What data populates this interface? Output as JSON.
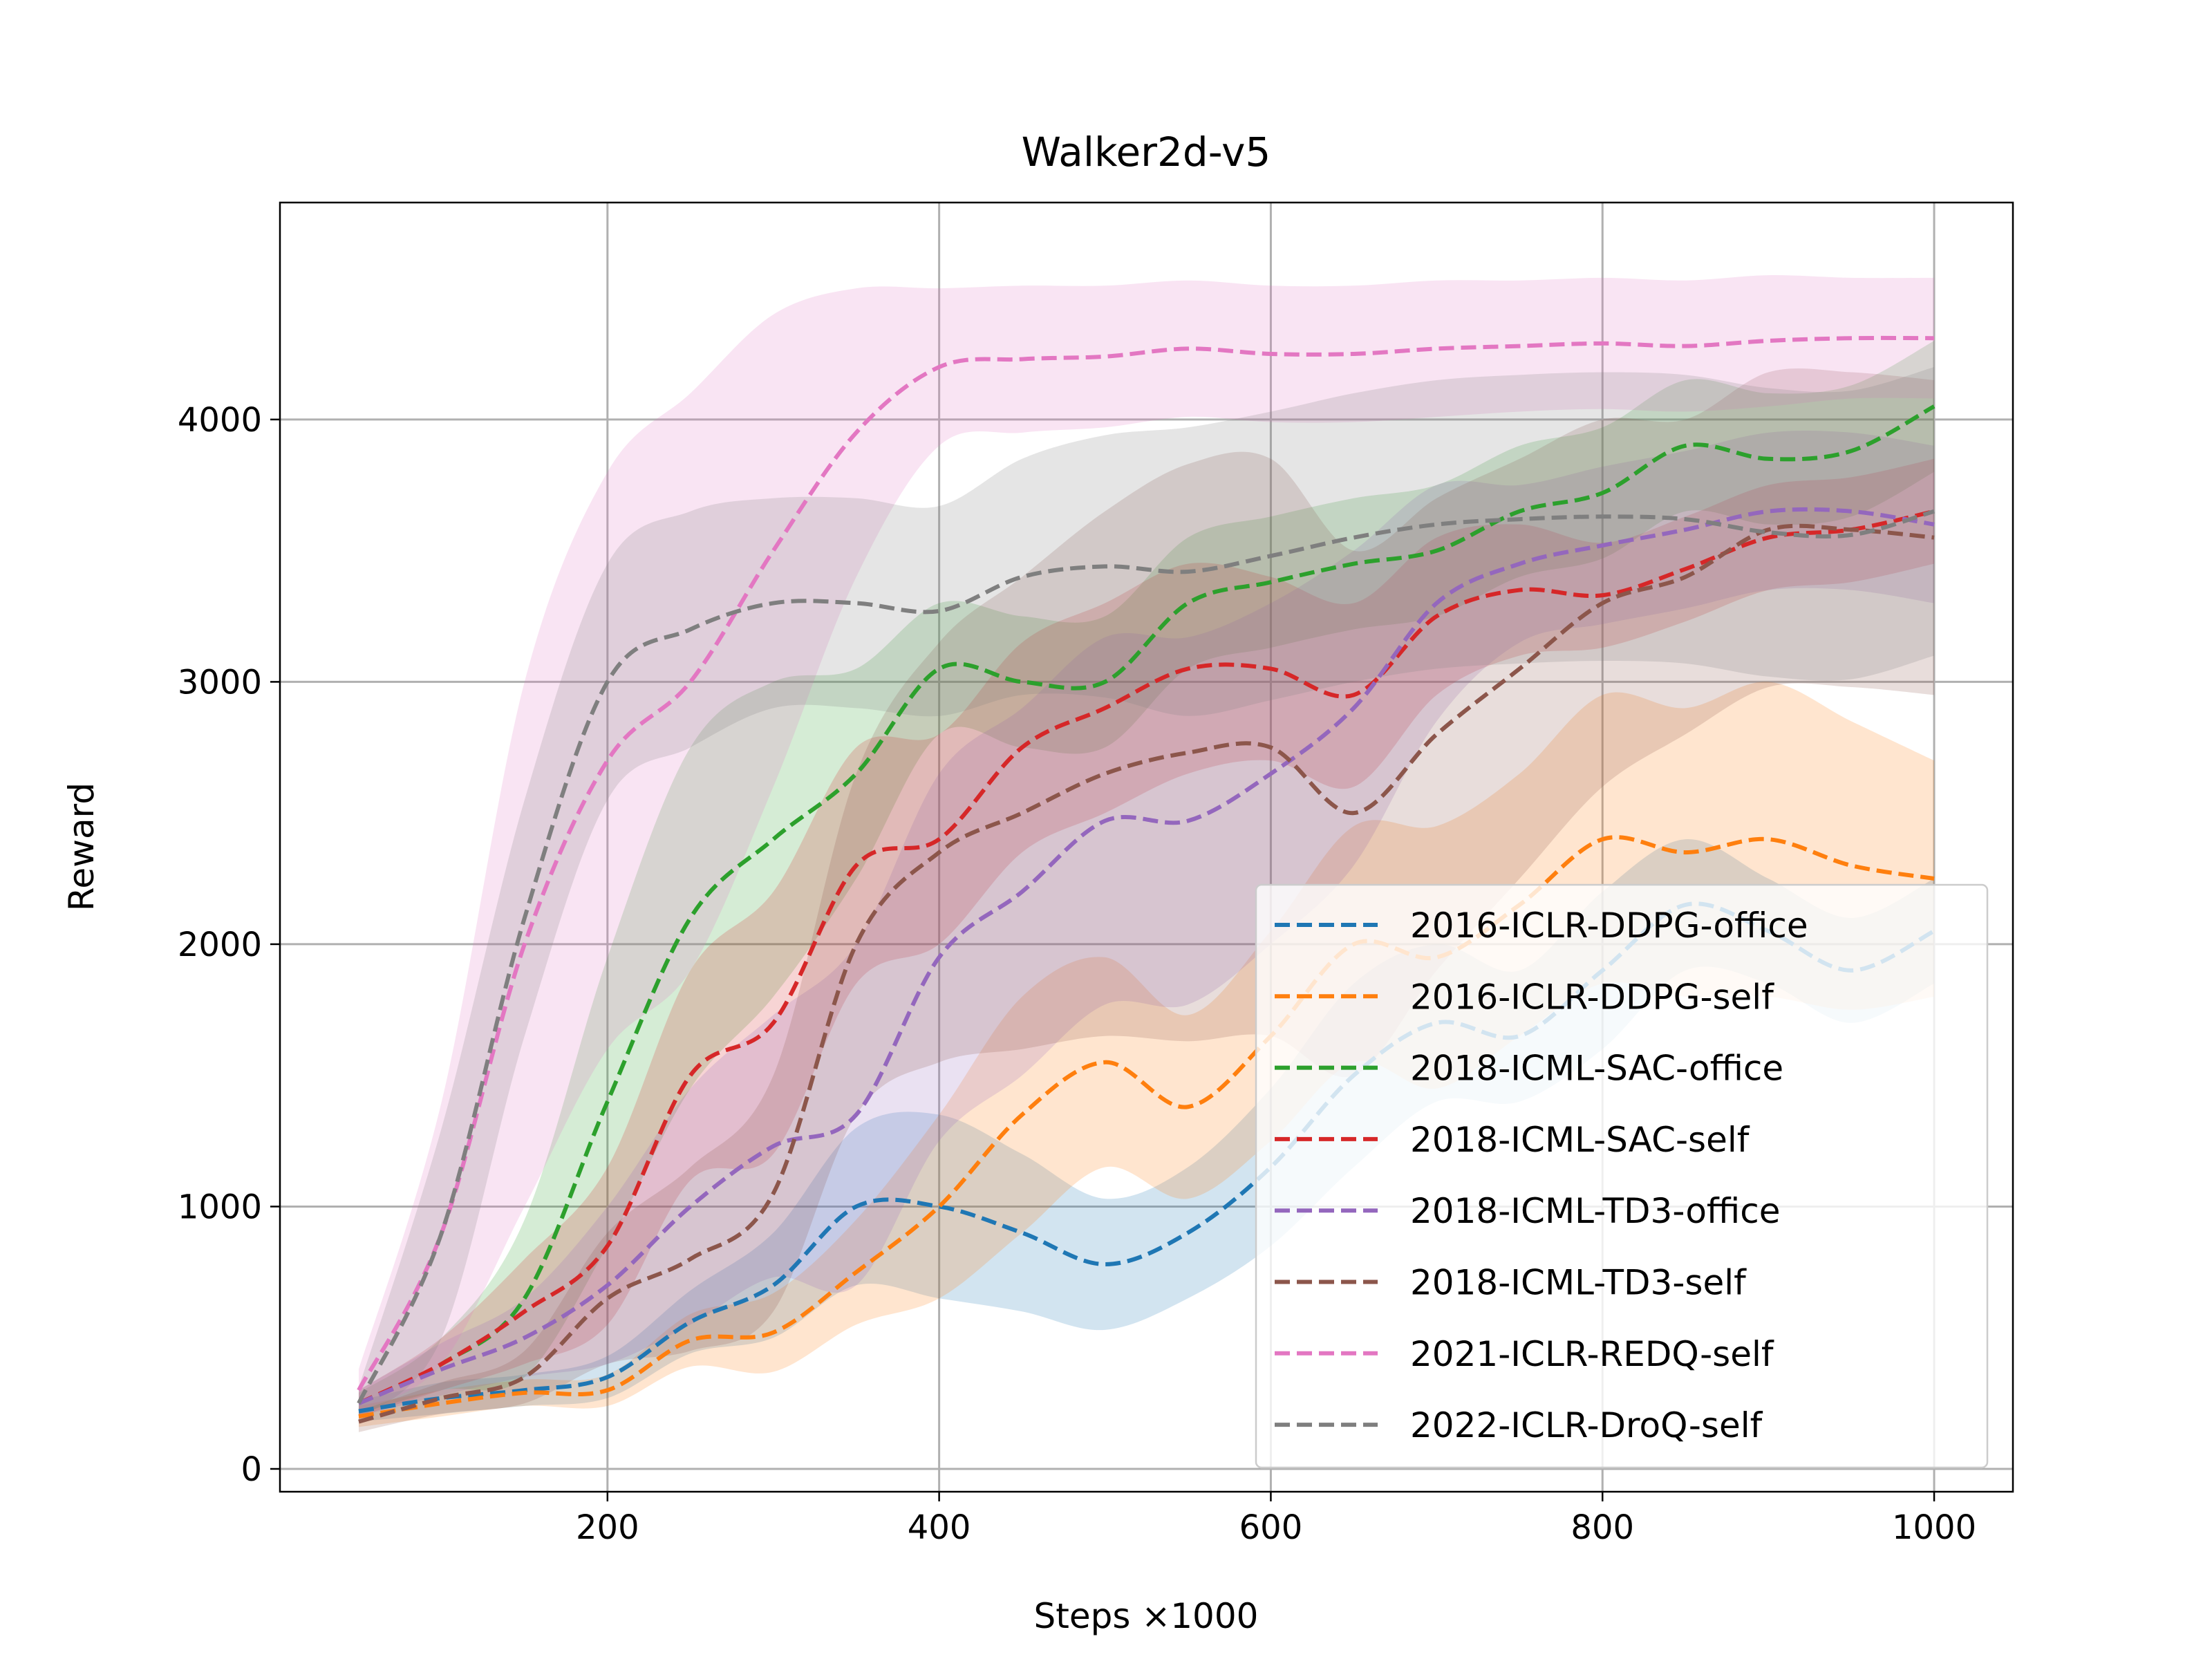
{
  "chart_data": {
    "type": "line",
    "title": "Walker2d-v5",
    "xlabel": "Steps ×1000",
    "ylabel": "Reward",
    "xlim": [
      2.5,
      1047.5
    ],
    "ylim": [
      -87,
      4827
    ],
    "xticks": [
      200,
      400,
      600,
      800,
      1000
    ],
    "yticks": [
      0,
      1000,
      2000,
      3000,
      4000
    ],
    "grid": true,
    "legend_position": "lower-right",
    "line_style": "dashed",
    "shaded_band": "spread around mean",
    "x": [
      50,
      100,
      150,
      200,
      250,
      300,
      350,
      400,
      450,
      500,
      550,
      600,
      650,
      700,
      750,
      800,
      850,
      900,
      950,
      1000
    ],
    "series": [
      {
        "name": "2016-ICLR-DDPG-office",
        "color": "#1f77b4",
        "values": [
          220,
          270,
          300,
          350,
          560,
          700,
          1000,
          1000,
          900,
          780,
          900,
          1150,
          1500,
          1700,
          1650,
          1900,
          2150,
          2050,
          1900,
          2050
        ],
        "spread": [
          40,
          60,
          60,
          80,
          120,
          200,
          300,
          350,
          300,
          250,
          250,
          300,
          350,
          300,
          250,
          300,
          250,
          200,
          200,
          200
        ]
      },
      {
        "name": "2016-ICLR-DDPG-self",
        "color": "#ff7f0e",
        "values": [
          200,
          250,
          290,
          300,
          490,
          520,
          750,
          1000,
          1350,
          1550,
          1380,
          1650,
          2000,
          1950,
          2150,
          2400,
          2350,
          2400,
          2300,
          2250
        ],
        "spread": [
          40,
          50,
          50,
          60,
          100,
          150,
          200,
          350,
          450,
          400,
          350,
          400,
          450,
          500,
          500,
          550,
          550,
          600,
          550,
          450
        ]
      },
      {
        "name": "2018-ICML-SAC-office",
        "color": "#2ca02c",
        "values": [
          250,
          400,
          650,
          1400,
          2100,
          2400,
          2650,
          3050,
          3000,
          3000,
          3300,
          3380,
          3450,
          3500,
          3650,
          3720,
          3900,
          3850,
          3880,
          4050
        ],
        "spread": [
          40,
          100,
          300,
          550,
          650,
          600,
          400,
          250,
          250,
          250,
          250,
          250,
          250,
          250,
          250,
          250,
          250,
          250,
          250,
          250
        ]
      },
      {
        "name": "2018-ICML-SAC-self",
        "color": "#d62728",
        "values": [
          250,
          400,
          600,
          850,
          1500,
          1700,
          2300,
          2400,
          2750,
          2900,
          3050,
          3050,
          2950,
          3250,
          3350,
          3330,
          3430,
          3550,
          3580,
          3650
        ],
        "spread": [
          50,
          100,
          200,
          300,
          400,
          500,
          450,
          400,
          400,
          400,
          400,
          350,
          350,
          300,
          250,
          200,
          200,
          200,
          200,
          200
        ]
      },
      {
        "name": "2018-ICML-TD3-office",
        "color": "#9467bd",
        "values": [
          250,
          380,
          500,
          700,
          1000,
          1230,
          1350,
          1950,
          2200,
          2470,
          2470,
          2650,
          2900,
          3300,
          3450,
          3520,
          3580,
          3650,
          3650,
          3600
        ],
        "spread": [
          50,
          100,
          150,
          300,
          450,
          500,
          650,
          700,
          700,
          700,
          700,
          650,
          600,
          450,
          300,
          300,
          300,
          300,
          300,
          300
        ]
      },
      {
        "name": "2018-ICML-TD3-self",
        "color": "#8c564b",
        "values": [
          180,
          270,
          350,
          650,
          800,
          1050,
          2000,
          2350,
          2500,
          2650,
          2730,
          2750,
          2500,
          2800,
          3050,
          3300,
          3400,
          3580,
          3580,
          3550
        ],
        "spread": [
          40,
          60,
          100,
          250,
          350,
          450,
          650,
          800,
          900,
          1000,
          1100,
          1100,
          1000,
          900,
          800,
          700,
          600,
          600,
          600,
          600
        ]
      },
      {
        "name": "2021-ICLR-REDQ-self",
        "color": "#e377c2",
        "values": [
          300,
          900,
          2000,
          2700,
          3000,
          3500,
          3950,
          4200,
          4230,
          4240,
          4270,
          4250,
          4250,
          4270,
          4280,
          4290,
          4280,
          4300,
          4310,
          4310
        ],
        "spread": [
          80,
          500,
          1000,
          1100,
          1100,
          900,
          550,
          300,
          280,
          270,
          260,
          260,
          260,
          260,
          250,
          250,
          250,
          250,
          230,
          230
        ]
      },
      {
        "name": "2022-ICLR-DroQ-self",
        "color": "#7f7f7f",
        "values": [
          250,
          900,
          2100,
          3000,
          3200,
          3300,
          3300,
          3270,
          3400,
          3440,
          3420,
          3480,
          3550,
          3600,
          3620,
          3630,
          3620,
          3570,
          3560,
          3650
        ],
        "spread": [
          60,
          400,
          450,
          450,
          450,
          400,
          400,
          400,
          450,
          500,
          550,
          550,
          550,
          550,
          550,
          550,
          550,
          550,
          550,
          550
        ]
      }
    ]
  }
}
